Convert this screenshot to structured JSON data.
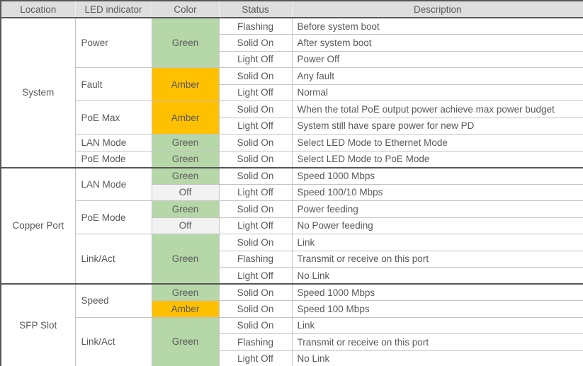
{
  "table": {
    "columns": [
      {
        "key": "location",
        "label": "Location"
      },
      {
        "key": "led",
        "label": "LED indicator"
      },
      {
        "key": "color",
        "label": "Color"
      },
      {
        "key": "status",
        "label": "Status"
      },
      {
        "key": "description",
        "label": "Description"
      }
    ],
    "colors": {
      "green": "#b6d7a8",
      "amber": "#fec000",
      "off": "#f2f2f2",
      "header_bg": "#dedede",
      "text": "#595959",
      "border_light": "#c3c3c3",
      "border_dark": "#565656"
    },
    "sections": [
      {
        "location": "System",
        "groups": [
          {
            "led": "Power",
            "colors": [
              {
                "label": "Green",
                "swatch": "green",
                "rows": [
                  {
                    "status": "Flashing",
                    "description": "Before system boot"
                  },
                  {
                    "status": "Solid On",
                    "description": "After system boot"
                  },
                  {
                    "status": "Light Off",
                    "description": "Power Off"
                  }
                ]
              }
            ]
          },
          {
            "led": "Fault",
            "colors": [
              {
                "label": "Amber",
                "swatch": "amber",
                "rows": [
                  {
                    "status": "Solid On",
                    "description": "Any fault"
                  },
                  {
                    "status": "Light Off",
                    "description": "Normal"
                  }
                ]
              }
            ]
          },
          {
            "led": "PoE Max",
            "colors": [
              {
                "label": "Amber",
                "swatch": "amber",
                "rows": [
                  {
                    "status": "Solid On",
                    "description": "When the total PoE output power achieve max power budget"
                  },
                  {
                    "status": "Light Off",
                    "description": "System still have spare power for new PD"
                  }
                ]
              }
            ]
          },
          {
            "led": "LAN Mode",
            "colors": [
              {
                "label": "Green",
                "swatch": "green",
                "rows": [
                  {
                    "status": "Solid On",
                    "description": "Select LED Mode to Ethernet Mode"
                  }
                ]
              }
            ]
          },
          {
            "led": "PoE Mode",
            "colors": [
              {
                "label": "Green",
                "swatch": "green",
                "rows": [
                  {
                    "status": "Solid On",
                    "description": "Select LED Mode to PoE Mode"
                  }
                ]
              }
            ]
          }
        ]
      },
      {
        "location": "Copper Port",
        "groups": [
          {
            "led": "LAN Mode",
            "colors": [
              {
                "label": "Green",
                "swatch": "green",
                "rows": [
                  {
                    "status": "Solid On",
                    "description": "Speed 1000 Mbps"
                  }
                ]
              },
              {
                "label": "Off",
                "swatch": "off",
                "rows": [
                  {
                    "status": "Light Off",
                    "description": "Speed 100/10 Mbps"
                  }
                ]
              }
            ]
          },
          {
            "led": "PoE Mode",
            "colors": [
              {
                "label": "Green",
                "swatch": "green",
                "rows": [
                  {
                    "status": "Solid On",
                    "description": "Power feeding"
                  }
                ]
              },
              {
                "label": "Off",
                "swatch": "off",
                "rows": [
                  {
                    "status": "Light Off",
                    "description": "No Power feeding"
                  }
                ]
              }
            ]
          },
          {
            "led": "Link/Act",
            "colors": [
              {
                "label": "Green",
                "swatch": "green",
                "rows": [
                  {
                    "status": "Solid On",
                    "description": "Link"
                  },
                  {
                    "status": "Flashing",
                    "description": "Transmit or receive on this port"
                  },
                  {
                    "status": "Light Off",
                    "description": "No Link"
                  }
                ]
              }
            ]
          }
        ]
      },
      {
        "location": "SFP Slot",
        "groups": [
          {
            "led": "Speed",
            "colors": [
              {
                "label": "Green",
                "swatch": "green",
                "rows": [
                  {
                    "status": "Solid On",
                    "description": "Speed 1000 Mbps"
                  }
                ]
              },
              {
                "label": "Amber",
                "swatch": "amber",
                "rows": [
                  {
                    "status": "Solid On",
                    "description": "Speed 100 Mbps"
                  }
                ]
              }
            ]
          },
          {
            "led": "Link/Act",
            "colors": [
              {
                "label": "Green",
                "swatch": "green",
                "rows": [
                  {
                    "status": "Solid On",
                    "description": "Link"
                  },
                  {
                    "status": "Flashing",
                    "description": "Transmit or receive on this port"
                  },
                  {
                    "status": "Light Off",
                    "description": "No Link"
                  }
                ]
              }
            ]
          }
        ]
      }
    ]
  }
}
